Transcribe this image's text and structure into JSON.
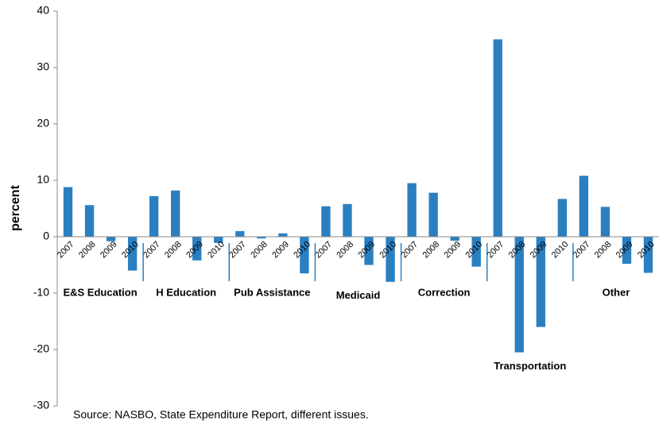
{
  "chart_data": {
    "type": "bar",
    "ylabel": "percent",
    "source": "Source:  NASBO, State Expenditure Report, different issues.",
    "groups": [
      "E&S Education",
      "H Education",
      "Pub Assistance",
      "Medicaid",
      "Correction",
      "Transportation",
      "Other"
    ],
    "categories": [
      "2007",
      "2008",
      "2009",
      "2010",
      "2007",
      "2008",
      "2009",
      "2010",
      "2007",
      "2008",
      "2009",
      "2010",
      "2007",
      "2008",
      "2009",
      "2010",
      "2007",
      "2008",
      "2009",
      "2010",
      "2007",
      "2008",
      "2009",
      "2010",
      "2007",
      "2008",
      "2009",
      "2010"
    ],
    "values": [
      8.8,
      5.6,
      -0.8,
      -6.0,
      7.2,
      8.2,
      -4.2,
      -1.1,
      1.0,
      -0.3,
      0.6,
      -6.5,
      5.4,
      5.8,
      -5.0,
      -8.0,
      9.5,
      7.8,
      -0.7,
      -5.3,
      35.0,
      -20.5,
      -16.0,
      6.7,
      10.8,
      5.3,
      -4.8,
      -6.4
    ],
    "color": "#2a7fc1",
    "ylim": [
      -30,
      40
    ],
    "yticks": [
      -30,
      -20,
      -10,
      0,
      10,
      20,
      30,
      40
    ],
    "grid": false
  }
}
